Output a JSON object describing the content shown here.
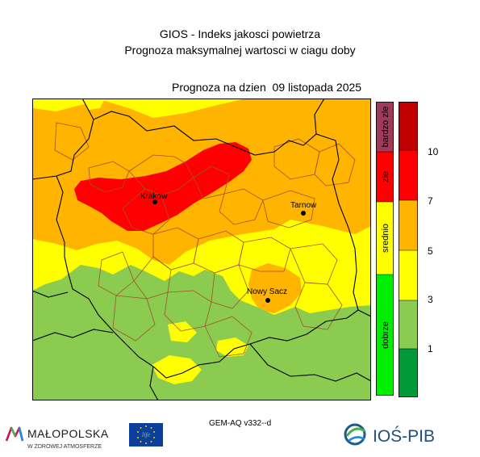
{
  "header": {
    "title_line1": "GIOS - Indeks jakosci powietrza",
    "title_line2": "Prognoza maksymalnej wartosci w ciagu doby",
    "forecast_label": "Prognoza na dzien  09 listopada 2025"
  },
  "map": {
    "cities": [
      {
        "name": "Krakow"
      },
      {
        "name": "Tarnow"
      },
      {
        "name": "Nowy Sacz"
      }
    ]
  },
  "legend": {
    "categories": [
      "bardzo zle",
      "zle",
      "srednio",
      "dobrze"
    ],
    "ticks": [
      "10",
      "7",
      "5",
      "3",
      "1"
    ],
    "colors": {
      "bardzo_zle": "#9f3b5a",
      "zle": "#ff0000",
      "srednio": "#ffff00",
      "dobrze": "#00ee00",
      "scale": [
        "#009a3a",
        "#8bcb4f",
        "#ffff00",
        "#ffb400",
        "#ff0000",
        "#c00000"
      ]
    }
  },
  "footer": {
    "model": "GEM-AQ v332--d",
    "logo_left": "MAŁOPOLSKA",
    "logo_left_tagline": "W ZDROWEJ ATMOSFERZE",
    "eu_logo": "life",
    "logo_right": "IOŚ-PIB"
  }
}
